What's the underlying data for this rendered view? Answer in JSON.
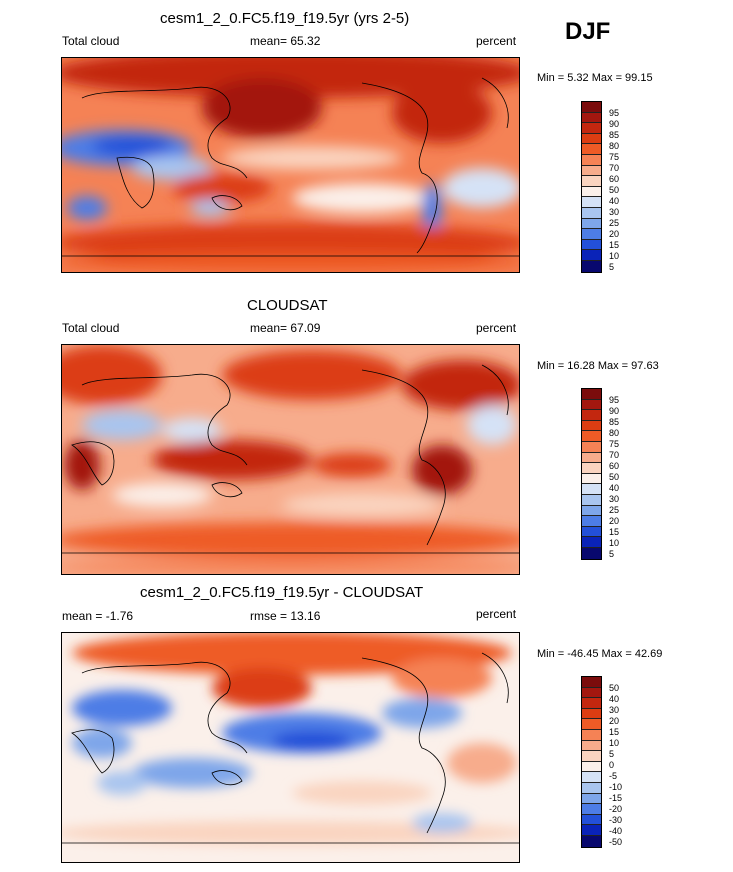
{
  "season": "DJF",
  "panels": [
    {
      "title": "cesm1_2_0.FC5.f19_f19.5yr (yrs 2-5)",
      "left_label": "Total cloud",
      "center_label": "mean=  65.32",
      "right_label": "percent",
      "minmax": "Min =   5.32 Max =  99.15",
      "levels": [
        "95",
        "90",
        "85",
        "80",
        "75",
        "70",
        "60",
        "50",
        "40",
        "30",
        "25",
        "20",
        "15",
        "10",
        "5"
      ]
    },
    {
      "title": "CLOUDSAT",
      "left_label": "Total cloud",
      "center_label": "mean=  67.09",
      "right_label": "percent",
      "minmax": "Min =  16.28 Max =  97.63",
      "levels": [
        "95",
        "90",
        "85",
        "80",
        "75",
        "70",
        "60",
        "50",
        "40",
        "30",
        "25",
        "20",
        "15",
        "10",
        "5"
      ]
    },
    {
      "title": "cesm1_2_0.FC5.f19_f19.5yr - CLOUDSAT",
      "left_label": "mean =  -1.76",
      "center_label": "rmse =  13.16",
      "right_label": "percent",
      "minmax": "Min = -46.45 Max =  42.69",
      "levels": [
        "50",
        "40",
        "30",
        "20",
        "15",
        "10",
        "5",
        "0",
        "-5",
        "-10",
        "-15",
        "-20",
        "-30",
        "-40",
        "-50"
      ]
    }
  ],
  "colormap": [
    "#7b0c0c",
    "#a3170f",
    "#c3270f",
    "#dc3d12",
    "#ee5b26",
    "#f58255",
    "#f7ac8c",
    "#fad4c0",
    "#fbf0ea",
    "#d5e2f6",
    "#a9c5ef",
    "#7ea6ea",
    "#4d7de6",
    "#2350d8",
    "#0a23b8",
    "#08086e"
  ]
}
